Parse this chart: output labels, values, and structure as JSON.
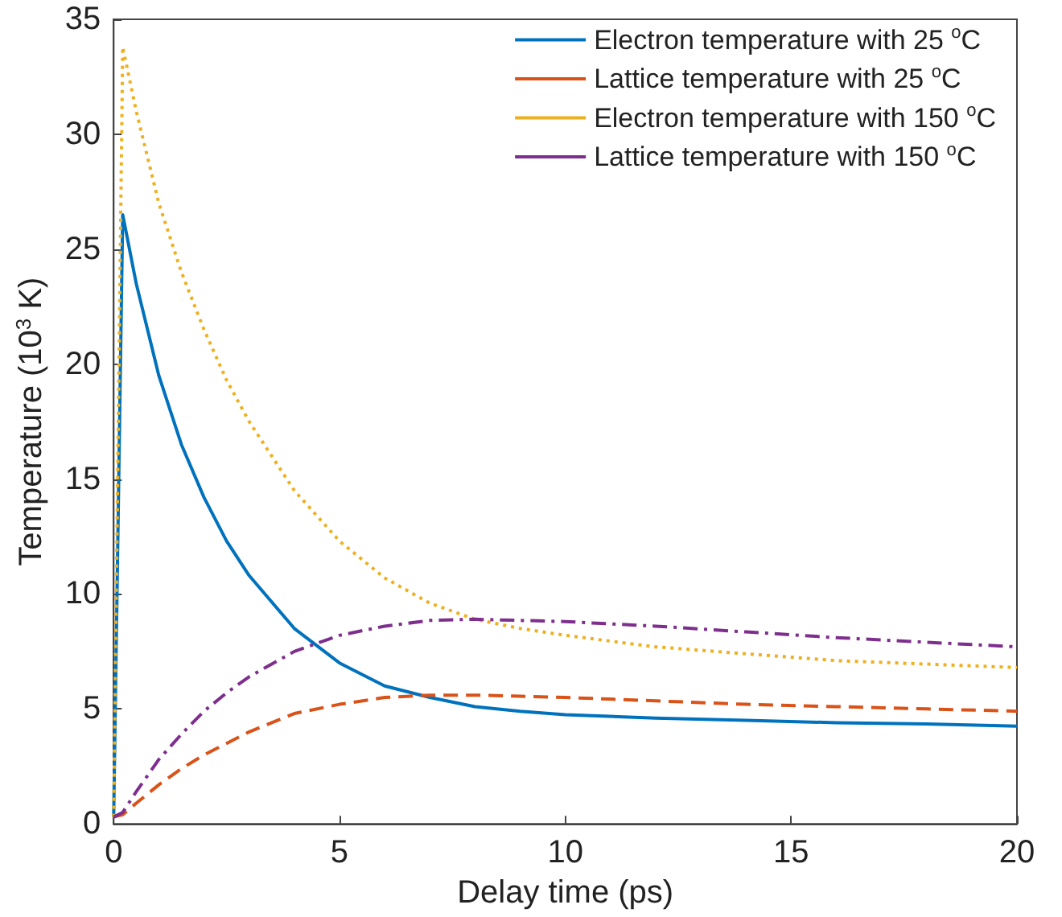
{
  "chart_data": {
    "type": "line",
    "xlabel": "Delay time (ps)",
    "ylabel": "Temperature (10$^{3}$ K)",
    "x": [
      0,
      0.2,
      0.5,
      1,
      1.5,
      2,
      2.5,
      3,
      4,
      5,
      6,
      7,
      8,
      9,
      10,
      12,
      14,
      16,
      18,
      20
    ],
    "series": [
      {
        "name": "Electron temperature with 25 $^{o}$C",
        "color": "#0072bd",
        "line_style": "solid",
        "values": [
          0.3,
          26.5,
          23.5,
          19.5,
          16.5,
          14.2,
          12.3,
          10.8,
          8.5,
          7.0,
          6.0,
          5.5,
          5.1,
          4.9,
          4.75,
          4.6,
          4.5,
          4.4,
          4.35,
          4.25
        ]
      },
      {
        "name": "Lattice temperature with 25 $^{o}$C",
        "color": "#d95319",
        "line_style": "dashed",
        "values": [
          0.3,
          0.4,
          0.9,
          1.7,
          2.4,
          3.0,
          3.5,
          4.0,
          4.8,
          5.2,
          5.5,
          5.6,
          5.6,
          5.55,
          5.5,
          5.35,
          5.2,
          5.1,
          5.0,
          4.9
        ]
      },
      {
        "name": "Electron temperature with 150 $^{o}$C",
        "color": "#edb120",
        "line_style": "dotted",
        "values": [
          0.3,
          33.8,
          31,
          27,
          24,
          21.5,
          19.3,
          17.5,
          14.5,
          12.3,
          10.7,
          9.6,
          8.9,
          8.5,
          8.2,
          7.7,
          7.4,
          7.1,
          6.95,
          6.8
        ]
      },
      {
        "name": "Lattice temperature with 150 $^{o}$C",
        "color": "#7e2f8e",
        "line_style": "dashdot",
        "values": [
          0.3,
          0.5,
          1.4,
          2.8,
          3.9,
          4.9,
          5.7,
          6.4,
          7.5,
          8.2,
          8.6,
          8.85,
          8.9,
          8.85,
          8.8,
          8.6,
          8.35,
          8.1,
          7.9,
          7.7
        ]
      }
    ],
    "xlim": [
      0,
      20
    ],
    "xticks": [
      0,
      5,
      10,
      15,
      20
    ],
    "ylim": [
      0,
      35
    ],
    "yticks": [
      0,
      5,
      10,
      15,
      20,
      25,
      30,
      35
    ],
    "legend": "top right",
    "marker": "none",
    "grid": false
  }
}
